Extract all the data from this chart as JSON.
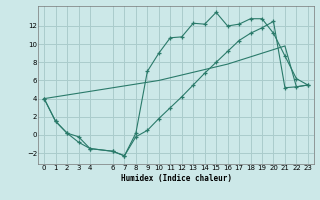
{
  "xlabel": "Humidex (Indice chaleur)",
  "bg_color": "#cce8e8",
  "grid_color": "#aacccc",
  "line_color": "#2a7a6a",
  "xlim": [
    -0.5,
    23.5
  ],
  "ylim": [
    -3.2,
    14.2
  ],
  "xticks": [
    0,
    1,
    2,
    3,
    4,
    6,
    7,
    8,
    9,
    10,
    11,
    12,
    13,
    14,
    15,
    16,
    17,
    18,
    19,
    20,
    21,
    22,
    23
  ],
  "yticks": [
    -2,
    0,
    2,
    4,
    6,
    8,
    10,
    12
  ],
  "line1_x": [
    0,
    1,
    2,
    3,
    4,
    6,
    7,
    8,
    9,
    10,
    11,
    12,
    13,
    14,
    15,
    16,
    17,
    18,
    19,
    20,
    21,
    22,
    23
  ],
  "line1_y": [
    4,
    1.5,
    0.2,
    -0.8,
    -1.5,
    -1.8,
    -2.3,
    0.2,
    7.0,
    9.0,
    10.7,
    10.8,
    12.3,
    12.2,
    13.5,
    12.0,
    12.2,
    12.8,
    12.8,
    11.2,
    8.7,
    6.2,
    5.5
  ],
  "line2_x": [
    0,
    1,
    2,
    3,
    4,
    6,
    7,
    8,
    9,
    10,
    11,
    12,
    13,
    14,
    15,
    16,
    17,
    18,
    19,
    20,
    21,
    22,
    23
  ],
  "line2_y": [
    4,
    1.5,
    0.2,
    -0.2,
    -1.5,
    -1.8,
    -2.3,
    -0.2,
    0.5,
    1.8,
    3.0,
    4.2,
    5.5,
    6.8,
    8.0,
    9.2,
    10.4,
    11.2,
    11.8,
    12.5,
    5.2,
    5.3,
    5.5
  ],
  "line3_x": [
    0,
    1,
    2,
    3,
    4,
    6,
    7,
    8,
    9,
    10,
    11,
    12,
    13,
    14,
    15,
    16,
    17,
    18,
    19,
    20,
    21,
    22,
    23
  ],
  "line3_y": [
    4,
    4.2,
    4.4,
    4.6,
    4.8,
    5.2,
    5.4,
    5.6,
    5.8,
    6.0,
    6.3,
    6.6,
    6.9,
    7.2,
    7.5,
    7.8,
    8.2,
    8.6,
    9.0,
    9.4,
    9.8,
    5.3,
    5.5
  ]
}
